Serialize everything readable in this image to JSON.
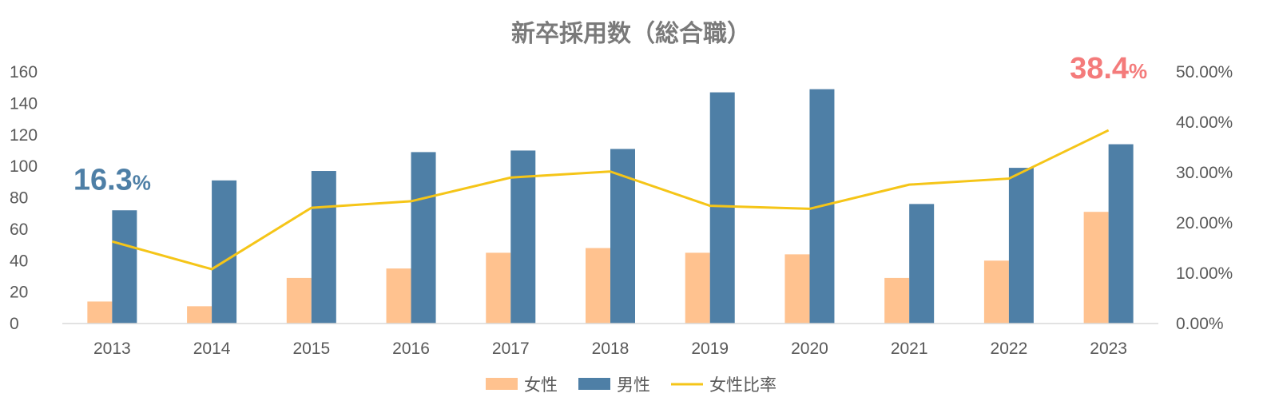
{
  "chart_data": {
    "type": "bar",
    "title": "新卒採用数（総合職）",
    "categories": [
      "2013",
      "2014",
      "2015",
      "2016",
      "2017",
      "2018",
      "2019",
      "2020",
      "2021",
      "2022",
      "2023"
    ],
    "series": [
      {
        "name": "女性",
        "kind": "bar",
        "axis": "left",
        "color": "#FFC28F",
        "values": [
          14,
          11,
          29,
          35,
          45,
          48,
          45,
          44,
          29,
          40,
          71
        ]
      },
      {
        "name": "男性",
        "kind": "bar",
        "axis": "left",
        "color": "#4E7FA6",
        "values": [
          72,
          91,
          97,
          109,
          110,
          111,
          147,
          149,
          76,
          99,
          114
        ]
      },
      {
        "name": "女性比率",
        "kind": "line",
        "axis": "right",
        "color": "#F5C518",
        "values": [
          16.3,
          10.8,
          23.0,
          24.3,
          29.0,
          30.2,
          23.4,
          22.8,
          27.6,
          28.8,
          38.4
        ]
      }
    ],
    "y_left": {
      "min": 0,
      "max": 160,
      "ticks": [
        "0",
        "20",
        "40",
        "60",
        "80",
        "100",
        "120",
        "140",
        "160"
      ]
    },
    "y_right": {
      "min": 0,
      "max": 50,
      "ticks": [
        "0.00%",
        "10.00%",
        "20.00%",
        "30.00%",
        "40.00%",
        "50.00%"
      ]
    },
    "annotations": [
      {
        "category": "2013",
        "number": "16.3",
        "unit": "%",
        "color": "#4E7FA6"
      },
      {
        "category": "2023",
        "number": "38.4",
        "unit": "%",
        "color": "#F47B7B"
      }
    ],
    "legend_position": "bottom",
    "grid": false
  }
}
